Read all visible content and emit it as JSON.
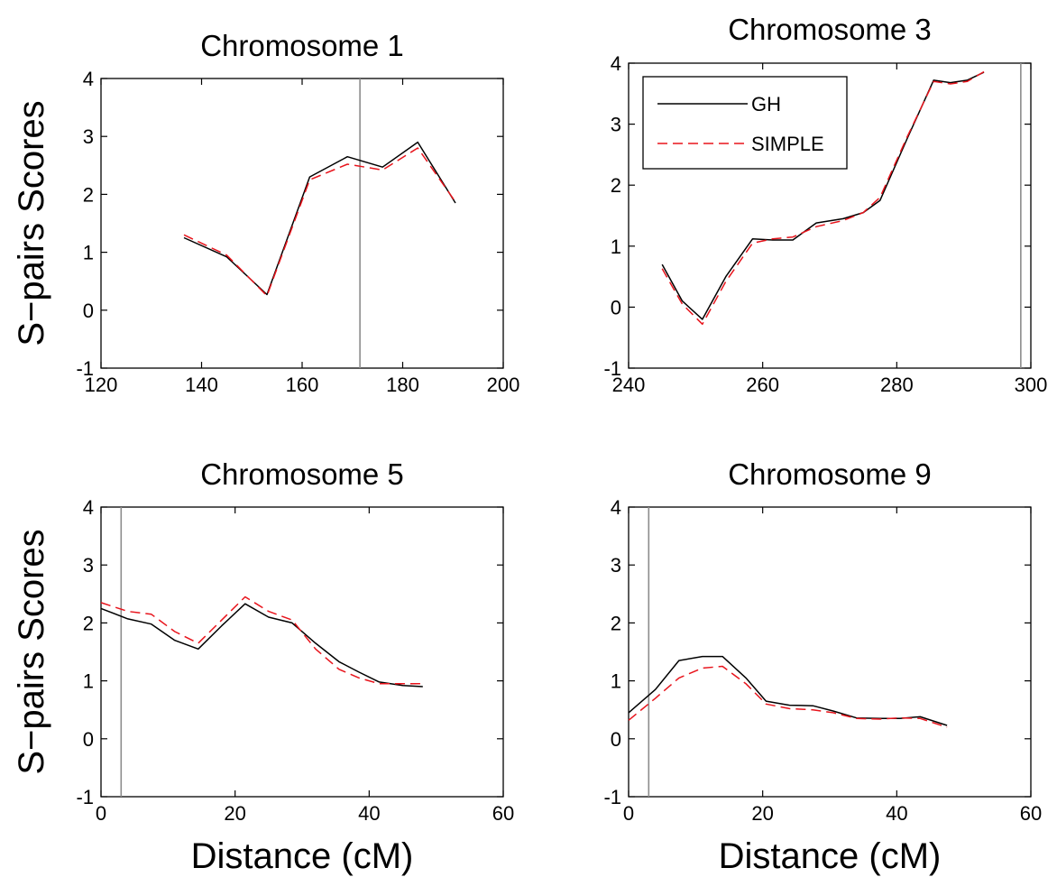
{
  "chart_data": [
    {
      "type": "line",
      "title": "Chromosome 1",
      "xlabel": "",
      "ylabel": "S−pairs Scores",
      "xlim": [
        120,
        200
      ],
      "ylim": [
        -1,
        4
      ],
      "xticks": [
        120,
        140,
        160,
        180,
        200
      ],
      "yticks": [
        -1,
        0,
        1,
        2,
        3,
        4
      ],
      "vline": 171.5,
      "legend": null,
      "series": [
        {
          "name": "GH",
          "color": "#000000",
          "dash": "solid",
          "x": [
            136.5,
            145,
            153,
            161.5,
            169,
            176,
            183,
            190.5
          ],
          "y": [
            1.25,
            0.92,
            0.27,
            2.3,
            2.65,
            2.47,
            2.9,
            1.85
          ]
        },
        {
          "name": "SIMPLE",
          "color": "#e8141c",
          "dash": "dashed",
          "x": [
            136.5,
            145,
            153,
            161.5,
            169,
            176,
            183,
            190.5
          ],
          "y": [
            1.3,
            0.95,
            0.25,
            2.25,
            2.52,
            2.42,
            2.8,
            1.87
          ]
        }
      ]
    },
    {
      "type": "line",
      "title": "Chromosome 3",
      "xlabel": "",
      "ylabel": "",
      "xlim": [
        240,
        300
      ],
      "ylim": [
        -1,
        4
      ],
      "xticks": [
        240,
        260,
        280,
        300
      ],
      "yticks": [
        -1,
        0,
        1,
        2,
        3,
        4
      ],
      "vline": 298.5,
      "legend": "top-left",
      "series": [
        {
          "name": "GH",
          "color": "#000000",
          "dash": "solid",
          "x": [
            245,
            248,
            251,
            254.5,
            258.5,
            261.5,
            264.5,
            268,
            272,
            275,
            277.5,
            281.5,
            285.5,
            288,
            290.5,
            293
          ],
          "y": [
            0.7,
            0.1,
            -0.2,
            0.5,
            1.12,
            1.1,
            1.1,
            1.38,
            1.45,
            1.55,
            1.75,
            2.75,
            3.72,
            3.68,
            3.72,
            3.85
          ]
        },
        {
          "name": "SIMPLE",
          "color": "#e8141c",
          "dash": "dashed",
          "x": [
            245,
            248,
            251,
            254.5,
            258.5,
            261.5,
            264.5,
            268,
            272,
            275,
            277.5,
            281.5,
            285.5,
            288,
            290.5,
            293
          ],
          "y": [
            0.63,
            0.05,
            -0.28,
            0.42,
            1.05,
            1.12,
            1.15,
            1.32,
            1.42,
            1.55,
            1.8,
            2.78,
            3.7,
            3.66,
            3.7,
            3.86
          ]
        }
      ]
    },
    {
      "type": "line",
      "title": "Chromosome 5",
      "xlabel": "Distance (cM)",
      "ylabel": "S−pairs Scores",
      "xlim": [
        0,
        60
      ],
      "ylim": [
        -1,
        4
      ],
      "xticks": [
        0,
        20,
        40,
        60
      ],
      "yticks": [
        -1,
        0,
        1,
        2,
        3,
        4
      ],
      "vline": 3,
      "legend": null,
      "series": [
        {
          "name": "GH",
          "color": "#000000",
          "dash": "solid",
          "x": [
            0,
            4,
            7.5,
            11,
            14.5,
            18,
            21.5,
            25,
            28.5,
            32,
            35.5,
            38.5,
            41.5,
            45,
            48
          ],
          "y": [
            2.25,
            2.07,
            1.98,
            1.7,
            1.55,
            1.95,
            2.33,
            2.1,
            2.0,
            1.65,
            1.33,
            1.15,
            0.98,
            0.92,
            0.9
          ]
        },
        {
          "name": "SIMPLE",
          "color": "#e8141c",
          "dash": "dashed",
          "x": [
            0,
            4,
            7.5,
            11,
            14.5,
            18,
            21.5,
            25,
            28.5,
            32,
            35.5,
            38.5,
            41.5,
            45,
            48
          ],
          "y": [
            2.35,
            2.2,
            2.15,
            1.85,
            1.65,
            2.05,
            2.45,
            2.2,
            2.05,
            1.55,
            1.2,
            1.05,
            0.95,
            0.95,
            0.95
          ]
        }
      ]
    },
    {
      "type": "line",
      "title": "Chromosome 9",
      "xlabel": "Distance (cM)",
      "ylabel": "",
      "xlim": [
        0,
        60
      ],
      "ylim": [
        -1,
        4
      ],
      "xticks": [
        0,
        20,
        40,
        60
      ],
      "yticks": [
        -1,
        0,
        1,
        2,
        3,
        4
      ],
      "vline": 3,
      "legend": null,
      "series": [
        {
          "name": "GH",
          "color": "#000000",
          "dash": "solid",
          "x": [
            0,
            4,
            7.5,
            11,
            14,
            17.5,
            20.5,
            24,
            27.5,
            30.5,
            34,
            37.5,
            40.5,
            43.5,
            47.5
          ],
          "y": [
            0.45,
            0.85,
            1.35,
            1.42,
            1.42,
            1.05,
            0.65,
            0.58,
            0.57,
            0.48,
            0.36,
            0.35,
            0.35,
            0.38,
            0.23
          ]
        },
        {
          "name": "SIMPLE",
          "color": "#e8141c",
          "dash": "dashed",
          "x": [
            0,
            4,
            7.5,
            11,
            14,
            17.5,
            20.5,
            24,
            27.5,
            30.5,
            34,
            37.5,
            40.5,
            43.5,
            47.5
          ],
          "y": [
            0.32,
            0.7,
            1.05,
            1.22,
            1.25,
            0.95,
            0.6,
            0.52,
            0.5,
            0.45,
            0.35,
            0.34,
            0.36,
            0.35,
            0.2
          ]
        }
      ]
    }
  ]
}
